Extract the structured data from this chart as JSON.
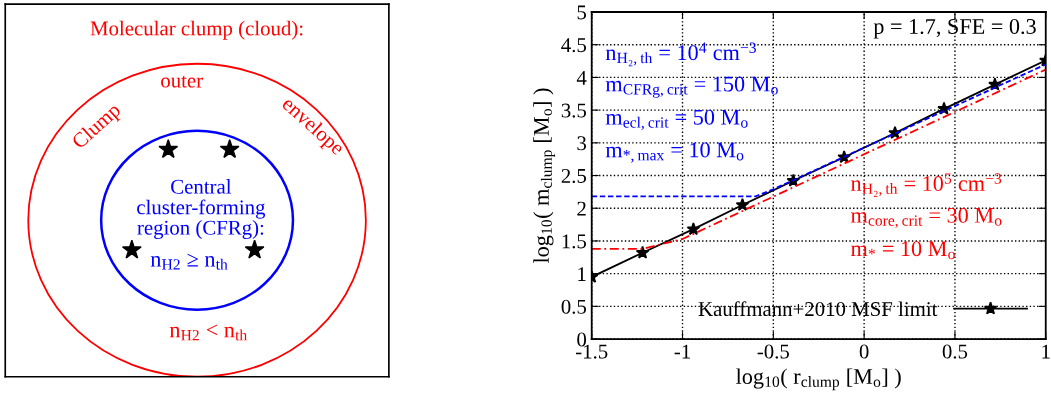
{
  "chart_data": [
    {
      "type": "other",
      "title": "Molecular clump (cloud):",
      "annotations": [
        "outer",
        "Clump",
        "envelope",
        "Central\ncluster-forming\nregion (CFRg):",
        "n$_{H2}$ ≥ n$_{th}$",
        "n$_{H2}$ < n$_{th}$"
      ]
    },
    {
      "type": "line",
      "series": [
        {
          "name": "Kauffmann+2010 MSF limit",
          "color": "#000000",
          "marker": "star",
          "line_style": "solid",
          "x": [
            -1.5,
            -1.22,
            -0.94,
            -0.67,
            -0.39,
            -0.11,
            0.17,
            0.44,
            0.72,
            1.0
          ],
          "values": [
            0.95,
            1.32,
            1.68,
            2.05,
            2.42,
            2.78,
            3.15,
            3.52,
            3.89,
            4.26
          ]
        },
        {
          "color": "#0000ff",
          "marker": "none",
          "line_style": "dashed",
          "x": [
            -1.5,
            -0.6,
            -0.5,
            1.0
          ],
          "values": [
            2.18,
            2.18,
            2.29,
            4.2
          ]
        },
        {
          "color": "#ff0000",
          "marker": "none",
          "line_style": "dashdot",
          "x": [
            -1.5,
            -1.22,
            -1.0,
            1.0
          ],
          "values": [
            1.38,
            1.38,
            1.53,
            4.12
          ]
        }
      ],
      "xlabel": "log$_{10}$( r$_{clump}$ [M$_{o}$] )",
      "ylabel": "log$_{10}$( m$_{clump}$ [M$_{o}$] )",
      "xlim": [
        -1.5,
        1
      ],
      "xticks": [
        -1.5,
        -1,
        -0.5,
        0,
        0.5,
        1
      ],
      "ylim": [
        0,
        5
      ],
      "yticks": [
        0,
        0.5,
        1,
        1.5,
        2,
        2.5,
        3,
        3.5,
        4,
        4.5,
        5
      ],
      "grid": true,
      "legend": "bottom right",
      "annotations": [
        "p = 1.7, SFE = 0.3",
        "n$_{H₂,th}$ = 10$^{4}$ cm$^{−3}$",
        "m$_{CFRg,crit}$ = 150 M$_{o}$",
        "m$_{ecl,crit}$ = 50 M$_{o}$",
        "m$_{*,max}$ = 10 M$_{o}$",
        "n$_{H₂,th}$ = 10$^{5}$ cm$^{−3}$",
        "m$_{core,crit}$ = 30 M$_{o}$",
        "m$_{*}$ = 10 M$_{o}$"
      ]
    }
  ]
}
